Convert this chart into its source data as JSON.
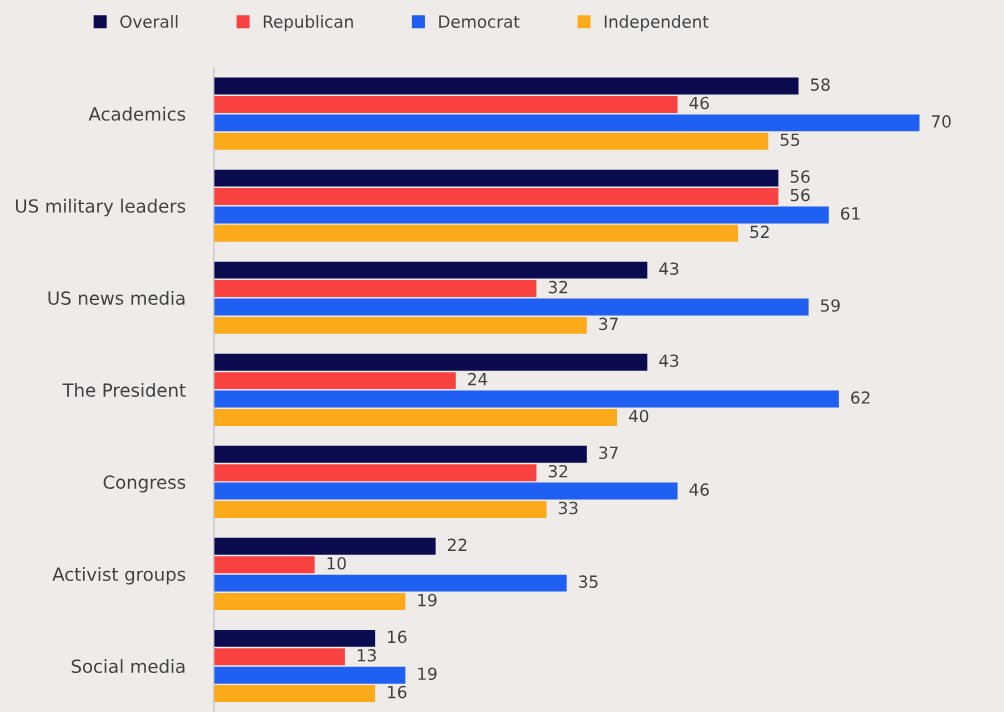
{
  "chart_data": {
    "type": "bar",
    "orientation": "horizontal",
    "categories": [
      "Academics",
      "US military leaders",
      "US news media",
      "The President",
      "Congress",
      "Activist groups",
      "Social media"
    ],
    "series": [
      {
        "name": "Overall",
        "color": "#0b0b4f",
        "values": [
          58,
          56,
          43,
          43,
          37,
          22,
          16
        ]
      },
      {
        "name": "Republican",
        "color": "#f9423f",
        "values": [
          46,
          56,
          32,
          24,
          32,
          10,
          13
        ]
      },
      {
        "name": "Democrat",
        "color": "#1f5ff2",
        "values": [
          70,
          61,
          59,
          62,
          46,
          35,
          19
        ]
      },
      {
        "name": "Independent",
        "color": "#fdaa1a",
        "values": [
          55,
          52,
          37,
          40,
          33,
          19,
          16
        ]
      }
    ],
    "data_labels": true,
    "legend": "top",
    "grid": false
  }
}
